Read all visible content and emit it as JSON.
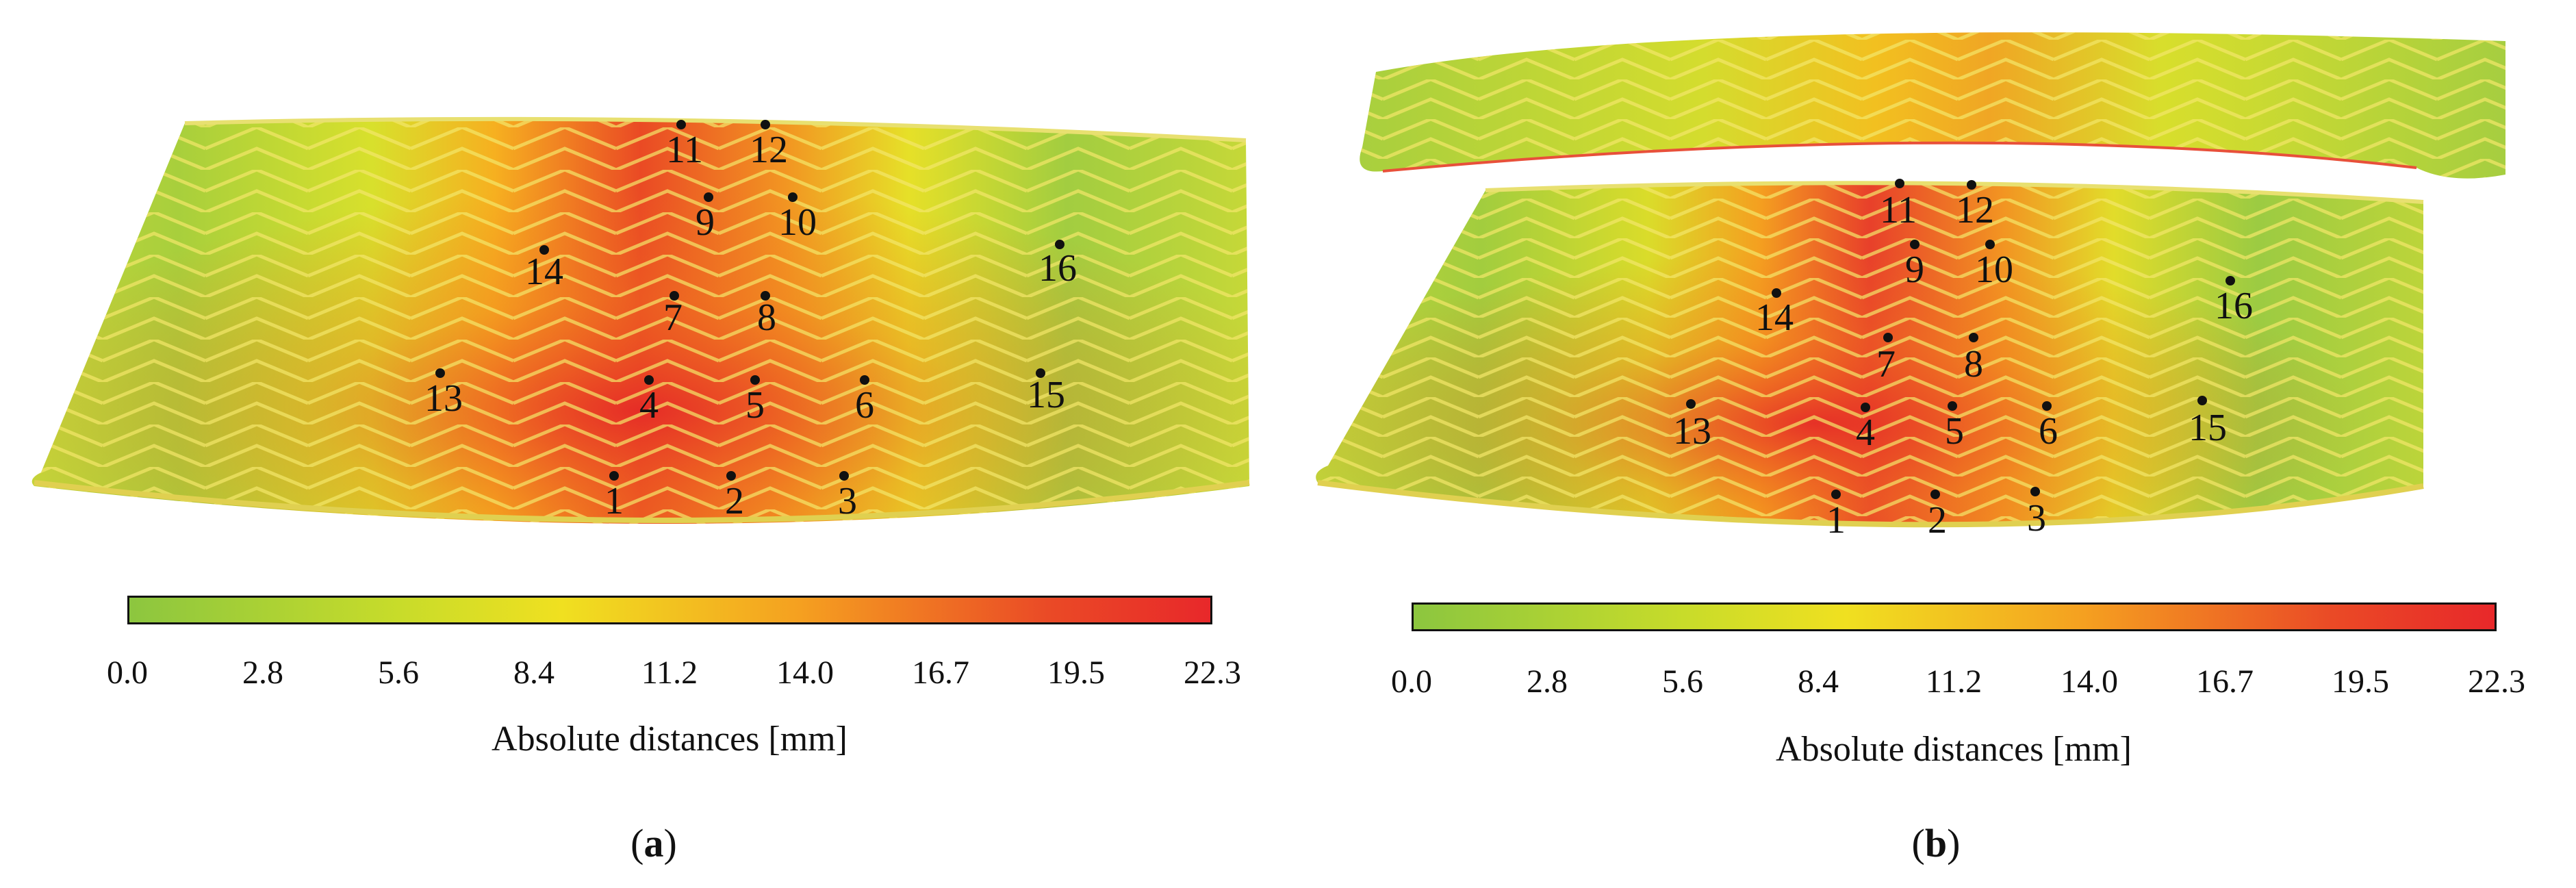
{
  "colors": {
    "low": "#8cc63f",
    "mid_low": "#c8dc2a",
    "mid": "#f0e020",
    "mid_high": "#f5a020",
    "high": "#e8282a"
  },
  "scale": {
    "ticks": [
      "0.0",
      "2.8",
      "5.6",
      "8.4",
      "11.2",
      "14.0",
      "16.7",
      "19.5",
      "22.3"
    ],
    "label": "Absolute distances [mm]"
  },
  "panels": [
    {
      "id": "a",
      "sublabel_open": "(",
      "sublabel_letter": "a",
      "sublabel_close": ")",
      "markers": [
        "1",
        "2",
        "3",
        "4",
        "5",
        "6",
        "7",
        "8",
        "9",
        "10",
        "11",
        "12",
        "13",
        "14",
        "15",
        "16"
      ]
    },
    {
      "id": "b",
      "sublabel_open": "(",
      "sublabel_letter": "b",
      "sublabel_close": ")",
      "markers": [
        "1",
        "2",
        "3",
        "4",
        "5",
        "6",
        "7",
        "8",
        "9",
        "10",
        "11",
        "12",
        "13",
        "14",
        "15",
        "16"
      ]
    }
  ]
}
